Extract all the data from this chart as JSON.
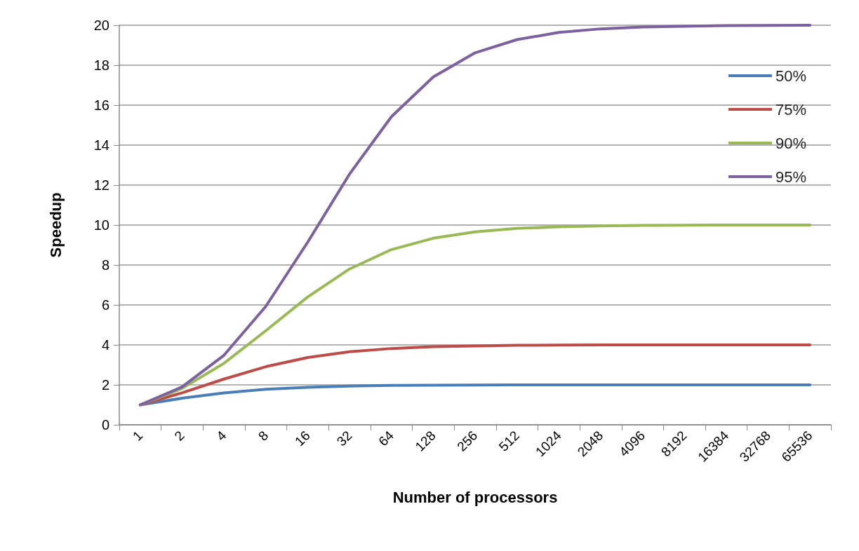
{
  "chart_data": {
    "type": "line",
    "xlabel": "Number of processors",
    "ylabel": "Speedup",
    "categories": [
      "1",
      "2",
      "4",
      "8",
      "16",
      "32",
      "64",
      "128",
      "256",
      "512",
      "1024",
      "2048",
      "4096",
      "8192",
      "16384",
      "32768",
      "65536"
    ],
    "series": [
      {
        "name": "50%",
        "color": "#4a7ebb",
        "values": [
          1,
          1.33,
          1.6,
          1.78,
          1.88,
          1.94,
          1.97,
          1.98,
          1.99,
          2,
          2,
          2,
          2,
          2,
          2,
          2,
          2
        ]
      },
      {
        "name": "75%",
        "color": "#be4b48",
        "values": [
          1,
          1.6,
          2.29,
          2.91,
          3.37,
          3.66,
          3.82,
          3.91,
          3.95,
          3.98,
          3.99,
          4,
          4,
          4,
          4,
          4,
          4
        ]
      },
      {
        "name": "90%",
        "color": "#98b954",
        "values": [
          1,
          1.82,
          3.08,
          4.71,
          6.4,
          7.8,
          8.77,
          9.34,
          9.66,
          9.83,
          9.91,
          9.96,
          9.98,
          9.99,
          10,
          10,
          10
        ]
      },
      {
        "name": "95%",
        "color": "#7d60a0",
        "values": [
          1,
          1.9,
          3.48,
          5.93,
          9.14,
          12.55,
          15.42,
          17.41,
          18.62,
          19.28,
          19.64,
          19.82,
          19.91,
          19.95,
          19.98,
          19.99,
          20
        ]
      }
    ],
    "ylim": [
      0,
      20
    ],
    "yticks": [
      0,
      2,
      4,
      6,
      8,
      10,
      12,
      14,
      16,
      18,
      20
    ],
    "grid": "y",
    "legend": "top right",
    "marker": "none",
    "line_style": "solid"
  }
}
